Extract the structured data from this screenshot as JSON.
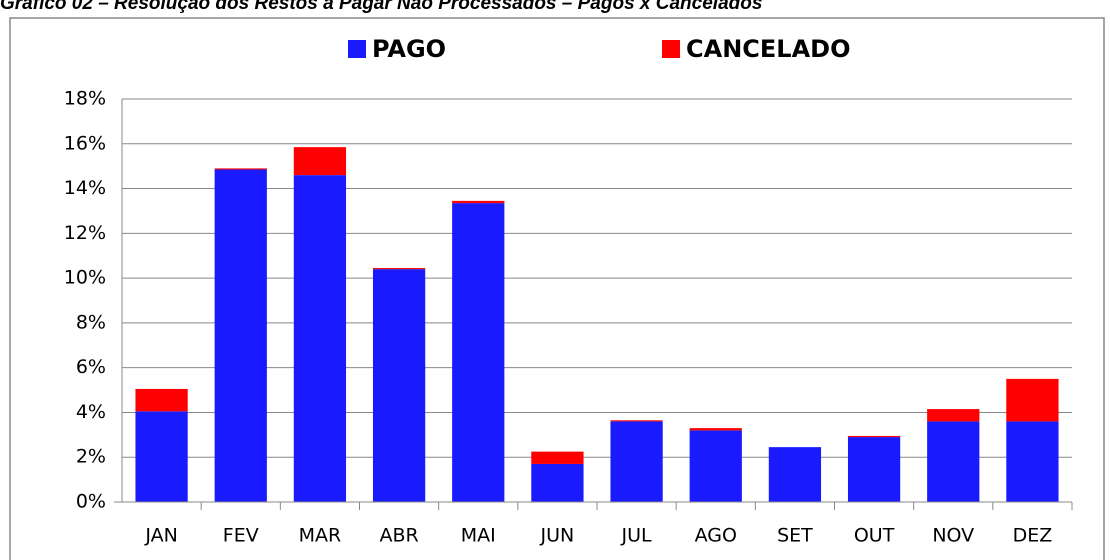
{
  "chart_data": {
    "type": "stacked_bar",
    "title": "Gráfico 02 – Resolução dos Restos a Pagar Não Processados – Pagos x Cancelados",
    "categories": [
      "JAN",
      "FEV",
      "MAR",
      "ABR",
      "MAI",
      "JUN",
      "JUL",
      "AGO",
      "SET",
      "OUT",
      "NOV",
      "DEZ"
    ],
    "series": [
      {
        "name": "PAGO",
        "color": "#1a1aff",
        "values": [
          4.05,
          14.85,
          14.6,
          10.4,
          13.35,
          1.7,
          3.6,
          3.2,
          2.45,
          2.9,
          3.6,
          3.6
        ]
      },
      {
        "name": "CANCELADO",
        "color": "#ff0000",
        "values": [
          1.0,
          0.05,
          1.25,
          0.05,
          0.1,
          0.55,
          0.05,
          0.1,
          0,
          0.05,
          0.55,
          1.9
        ]
      }
    ],
    "ylim": [
      0,
      18
    ],
    "yticks": [
      {
        "value": 0,
        "label": "0%"
      },
      {
        "value": 2,
        "label": "2%"
      },
      {
        "value": 4,
        "label": "4%"
      },
      {
        "value": 6,
        "label": "6%"
      },
      {
        "value": 8,
        "label": "8%"
      },
      {
        "value": 10,
        "label": "10%"
      },
      {
        "value": 12,
        "label": "12%"
      },
      {
        "value": 14,
        "label": "14%"
      },
      {
        "value": 16,
        "label": "16%"
      },
      {
        "value": 18,
        "label": "18%"
      }
    ],
    "grid": true,
    "legend": "top"
  }
}
